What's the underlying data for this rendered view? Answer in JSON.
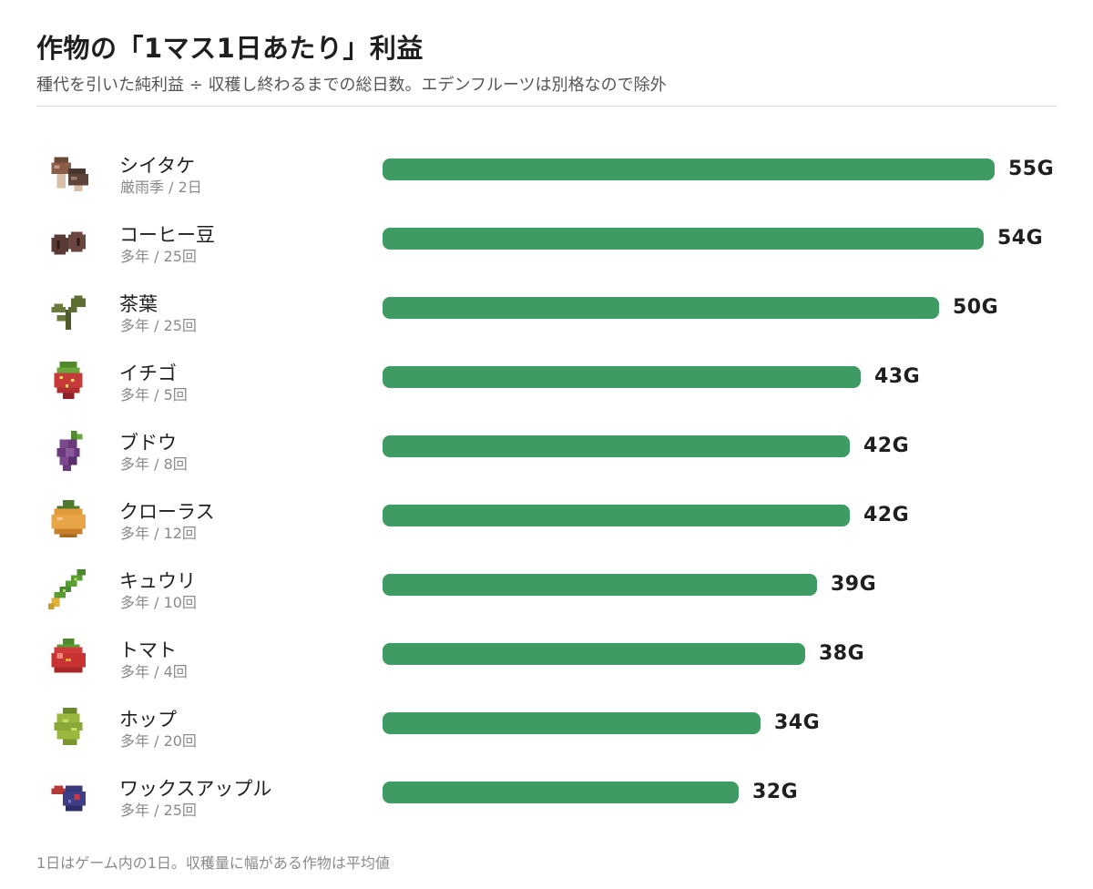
{
  "title": "作物の「1マス1日あたり」利益",
  "subtitle": "種代を引いた純利益 ÷ 収穫し終わるまでの総日数。エデンフルーツは別格なので除外",
  "footnote": "1日はゲーム内の1日。収穫量に幅がある作物は平均値",
  "colors": {
    "bar": "#3d9b63",
    "text": "#1f1f1f",
    "muted": "#8a8a8a"
  },
  "chart_data": {
    "type": "bar",
    "orientation": "horizontal",
    "title": "作物の「1マス1日あたり」利益",
    "subtitle": "種代を引いた純利益 ÷ 収穫し終わるまでの総日数。エデンフルーツは別格なので除外",
    "value_suffix": "G",
    "xlim": [
      0,
      55
    ],
    "grid": false,
    "items": [
      {
        "name": "シイタケ",
        "meta": "厳雨季 / 2日",
        "value": 55,
        "icon": "shiitake-icon"
      },
      {
        "name": "コーヒー豆",
        "meta": "多年 / 25回",
        "value": 54,
        "icon": "coffee-bean-icon"
      },
      {
        "name": "茶葉",
        "meta": "多年 / 25回",
        "value": 50,
        "icon": "tea-leaf-icon"
      },
      {
        "name": "イチゴ",
        "meta": "多年 / 5回",
        "value": 43,
        "icon": "strawberry-icon"
      },
      {
        "name": "ブドウ",
        "meta": "多年 / 8回",
        "value": 42,
        "icon": "grape-icon"
      },
      {
        "name": "クローラス",
        "meta": "多年 / 12回",
        "value": 42,
        "icon": "clorus-icon"
      },
      {
        "name": "キュウリ",
        "meta": "多年 / 10回",
        "value": 39,
        "icon": "cucumber-icon"
      },
      {
        "name": "トマト",
        "meta": "多年 / 4回",
        "value": 38,
        "icon": "tomato-icon"
      },
      {
        "name": "ホップ",
        "meta": "多年 / 20回",
        "value": 34,
        "icon": "hops-icon"
      },
      {
        "name": "ワックスアップル",
        "meta": "多年 / 25回",
        "value": 32,
        "icon": "wax-apple-icon"
      }
    ]
  }
}
